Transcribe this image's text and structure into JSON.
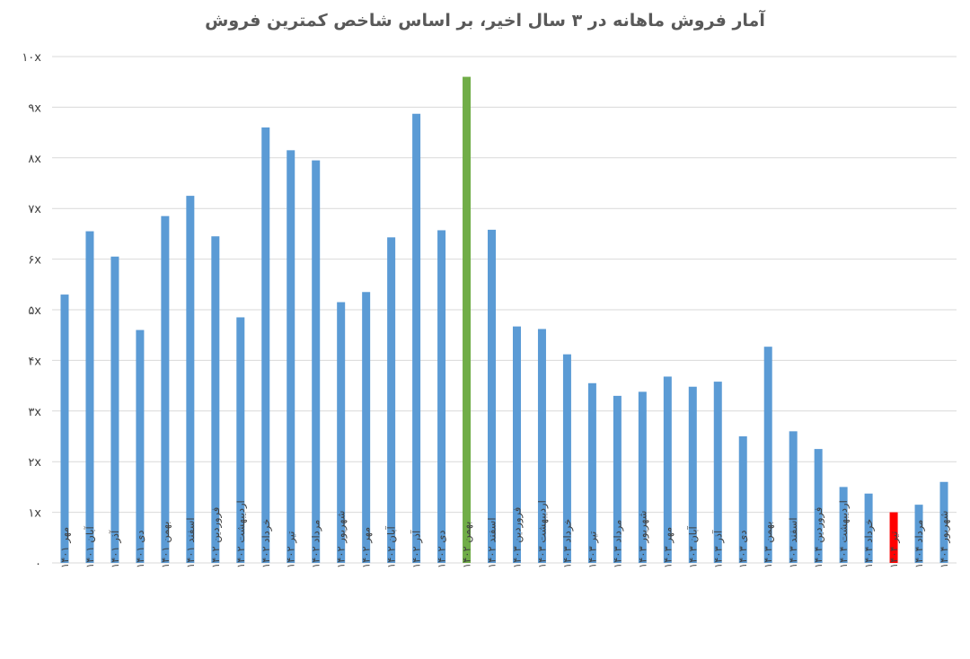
{
  "chart_data": {
    "type": "bar",
    "title": "آمار فروش ماهانه در ۳ سال اخیر، بر اساس شاخص کمترین فروش",
    "xlabel": "",
    "ylabel": "",
    "ylim": [
      0,
      10
    ],
    "grid": true,
    "y_ticks": [
      0,
      1,
      2,
      3,
      4,
      5,
      6,
      7,
      8,
      9,
      10
    ],
    "y_tick_labels": [
      "۰",
      "۱x",
      "۲x",
      "۳x",
      "۴x",
      "۵x",
      "۶x",
      "۷x",
      "۸x",
      "۹x",
      "۱۰x"
    ],
    "categories": [
      "مهر ۱۴۰۱",
      "آبان ۱۴۰۱",
      "آذر ۱۴۰۱",
      "دی ۱۴۰۱",
      "بهمن ۱۴۰۱",
      "اسفند ۱۴۰۱",
      "فروردین ۱۴۰۲",
      "اردیبهشت ۱۴۰۲",
      "خرداد ۱۴۰۲",
      "تیر ۱۴۰۲",
      "مرداد ۱۴۰۲",
      "شهریور ۱۴۰۲",
      "مهر ۱۴۰۲",
      "آبان ۱۴۰۲",
      "آذر ۱۴۰۲",
      "دی ۱۴۰۲",
      "بهمن ۱۴۰۲",
      "اسفند ۱۴۰۲",
      "فروردین ۱۴۰۳",
      "اردیبهشت ۱۴۰۳",
      "خرداد ۱۴۰۳",
      "تیر ۱۴۰۳",
      "مرداد ۱۴۰۳",
      "شهریور ۱۴۰۳",
      "مهر ۱۴۰۳",
      "آبان ۱۴۰۳",
      "آذر ۱۴۰۳",
      "دی ۱۴۰۳",
      "بهمن ۱۴۰۳",
      "اسفند ۱۴۰۳",
      "فروردین ۱۴۰۴",
      "اردیبهشت ۱۴۰۴",
      "خرداد ۱۴۰۴",
      "تیر ۱۴۰۴",
      "مرداد ۱۴۰۴",
      "شهریور ۱۴۰۴"
    ],
    "values": [
      5.3,
      6.55,
      6.05,
      4.6,
      6.85,
      7.25,
      6.45,
      4.85,
      8.6,
      8.15,
      7.95,
      5.15,
      5.35,
      6.43,
      8.87,
      6.57,
      9.6,
      6.58,
      4.67,
      4.62,
      4.12,
      3.55,
      3.3,
      3.38,
      3.68,
      3.48,
      3.58,
      2.5,
      4.27,
      2.6,
      2.25,
      1.5,
      1.37,
      1.0,
      1.15,
      1.6
    ],
    "colors": {
      "default": "#5b9bd5",
      "highest": "#70ad47",
      "lowest": "#ff0000"
    },
    "highlight": {
      "highest_index": 16,
      "lowest_index": 33
    }
  }
}
